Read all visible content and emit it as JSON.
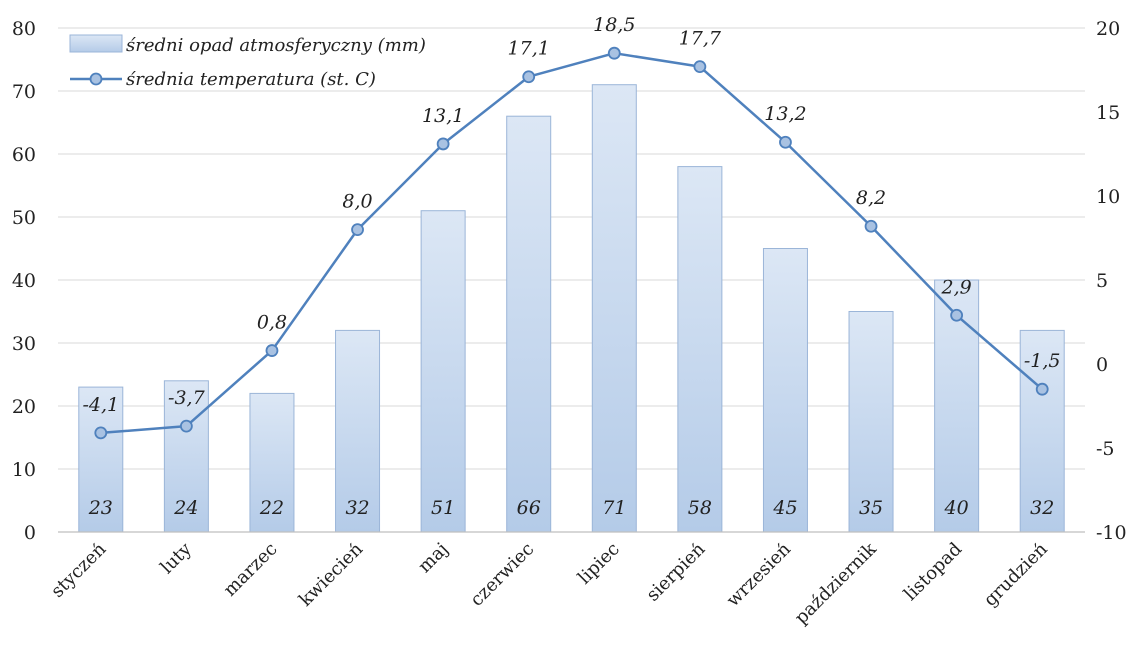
{
  "chart_data": {
    "type": "bar+line",
    "categories": [
      "styczeń",
      "luty",
      "marzec",
      "kwiecień",
      "maj",
      "czerwiec",
      "lipiec",
      "sierpień",
      "wrzesień",
      "październik",
      "listopad",
      "grudzień"
    ],
    "series": [
      {
        "name": "średni opad atmosferyczny (mm)",
        "type": "bar",
        "axis": "left",
        "values": [
          23,
          24,
          22,
          32,
          51,
          66,
          71,
          58,
          45,
          35,
          40,
          32
        ],
        "labels": [
          "23",
          "24",
          "22",
          "32",
          "51",
          "66",
          "71",
          "58",
          "45",
          "35",
          "40",
          "32"
        ]
      },
      {
        "name": "średnia temperatura (st. C)",
        "type": "line",
        "axis": "right",
        "values": [
          -4.1,
          -3.7,
          0.8,
          8.0,
          13.1,
          17.1,
          18.5,
          17.7,
          13.2,
          8.2,
          2.9,
          -1.5
        ],
        "labels": [
          "-4,1",
          "-3,7",
          "0,8",
          "8,0",
          "13,1",
          "17,1",
          "18,5",
          "17,7",
          "13,2",
          "8,2",
          "2,9",
          "-1,5"
        ]
      }
    ],
    "y_left": {
      "min": 0,
      "max": 80,
      "step": 10,
      "ticks": [
        "0",
        "10",
        "20",
        "30",
        "40",
        "50",
        "60",
        "70",
        "80"
      ]
    },
    "y_right": {
      "min": -10,
      "max": 20,
      "step": 5,
      "ticks": [
        "-10",
        "-5",
        "0",
        "5",
        "10",
        "15",
        "20"
      ]
    },
    "grid": "horizontal",
    "legend_position": "top-left",
    "colors": {
      "bar_top": "#dce7f5",
      "bar_bottom": "#b4cbe8",
      "bar_stroke": "#9bb5d8",
      "line": "#4f81bd",
      "marker_fill": "#a9c2e2",
      "grid": "#d9d9d9",
      "axis": "#bfbfbf"
    }
  }
}
